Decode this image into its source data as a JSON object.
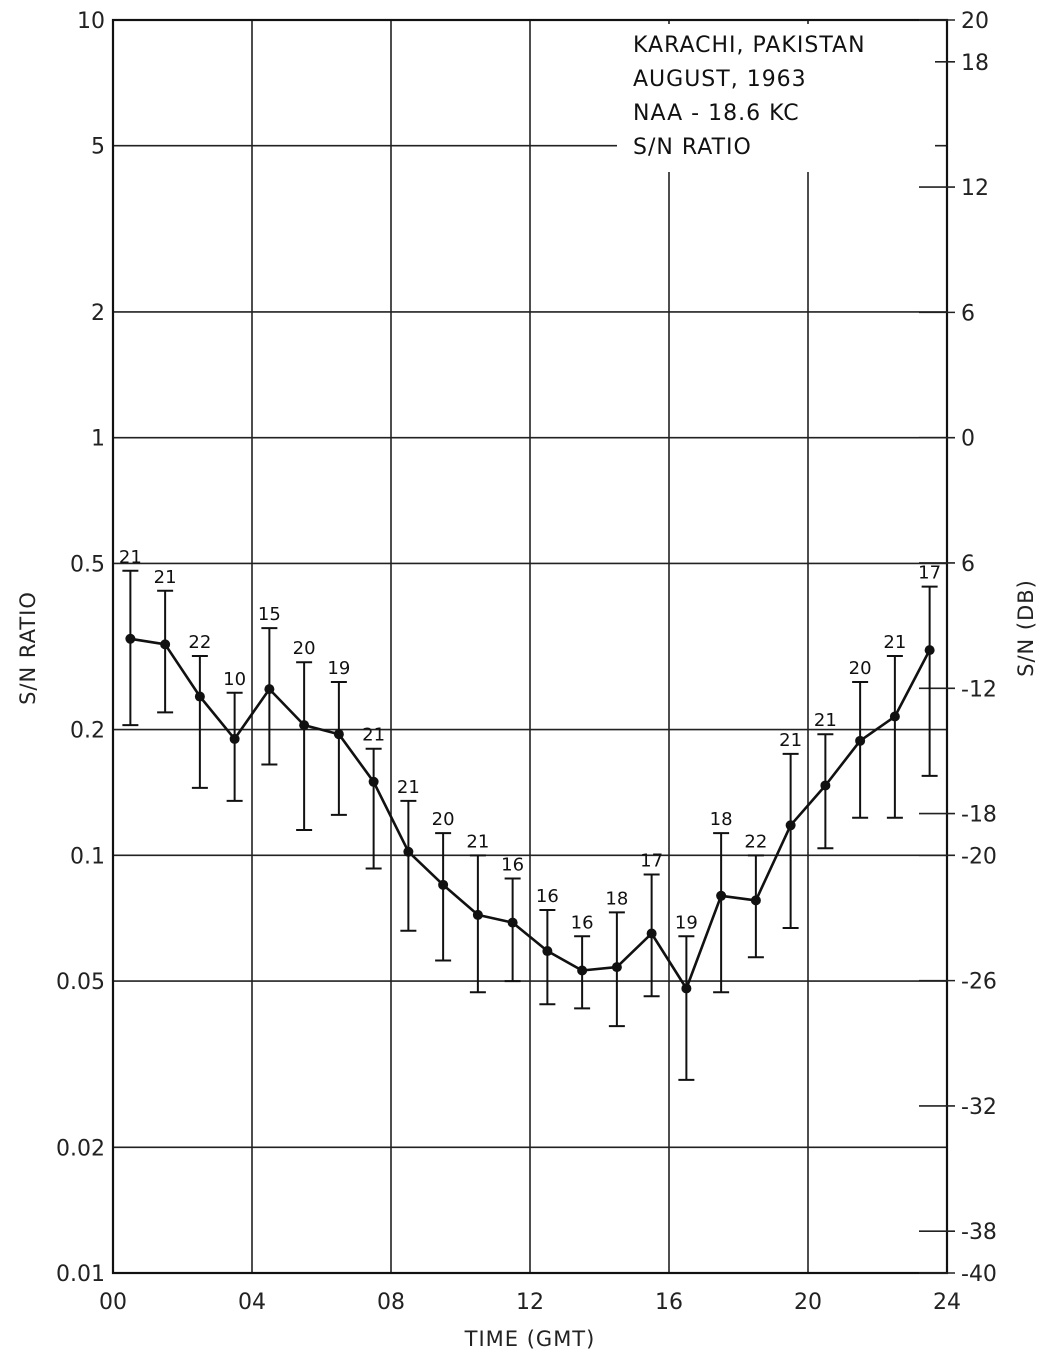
{
  "chart_data": {
    "type": "line",
    "title_lines": [
      "KARACHI, PAKISTAN",
      "AUGUST, 1963",
      "NAA - 18.6 KC",
      "S/N RATIO"
    ],
    "xlabel": "TIME (GMT)",
    "ylabel": "S/N RATIO",
    "ylabel_right": "S/N (DB)",
    "x_ticks": [
      "00",
      "04",
      "08",
      "12",
      "16",
      "20",
      "24"
    ],
    "xlim": [
      0,
      24
    ],
    "y_scale": "log",
    "ylim": [
      0.01,
      10
    ],
    "y_ticks": [
      {
        "value": 10,
        "label": "10"
      },
      {
        "value": 5,
        "label": "5"
      },
      {
        "value": 2,
        "label": "2"
      },
      {
        "value": 1,
        "label": "1"
      },
      {
        "value": 0.5,
        "label": "0.5"
      },
      {
        "value": 0.2,
        "label": "0.2"
      },
      {
        "value": 0.1,
        "label": "0.1"
      },
      {
        "value": 0.05,
        "label": "0.05"
      },
      {
        "value": 0.02,
        "label": "0.02"
      },
      {
        "value": 0.01,
        "label": "0.01"
      }
    ],
    "y_right_ticks": [
      {
        "db": 20,
        "label": "20"
      },
      {
        "db": 18,
        "label": "18"
      },
      {
        "db": 12,
        "label": "12"
      },
      {
        "db": 6,
        "label": "6"
      },
      {
        "db": 0,
        "label": "0"
      },
      {
        "db": -6,
        "label": "6"
      },
      {
        "db": -12,
        "label": "-12"
      },
      {
        "db": -18,
        "label": "-18"
      },
      {
        "db": -20,
        "label": "-20"
      },
      {
        "db": -26,
        "label": "-26"
      },
      {
        "db": -32,
        "label": "-32"
      },
      {
        "db": -38,
        "label": "-38"
      },
      {
        "db": -40,
        "label": "-40"
      }
    ],
    "grid": true,
    "series": [
      {
        "x": [
          0.5,
          1.5,
          2.5,
          3.5,
          4.5,
          5.5,
          6.5,
          7.5,
          8.5,
          9.5,
          10.5,
          11.5,
          12.5,
          13.5,
          14.5,
          15.5,
          16.5,
          17.5,
          18.5,
          19.5,
          20.5,
          21.5,
          22.5,
          23.5
        ],
        "y": [
          0.33,
          0.32,
          0.24,
          0.19,
          0.25,
          0.205,
          0.195,
          0.15,
          0.102,
          0.085,
          0.072,
          0.069,
          0.059,
          0.053,
          0.054,
          0.065,
          0.048,
          0.08,
          0.078,
          0.118,
          0.147,
          0.188,
          0.215,
          0.31
        ],
        "y_high": [
          0.48,
          0.43,
          0.3,
          0.245,
          0.35,
          0.29,
          0.26,
          0.18,
          0.135,
          0.113,
          0.1,
          0.088,
          0.074,
          0.064,
          0.073,
          0.09,
          0.064,
          0.113,
          0.1,
          0.175,
          0.195,
          0.26,
          0.3,
          0.44
        ],
        "y_low": [
          0.205,
          0.22,
          0.145,
          0.135,
          0.165,
          0.115,
          0.125,
          0.093,
          0.066,
          0.056,
          0.047,
          0.05,
          0.044,
          0.043,
          0.039,
          0.046,
          0.029,
          0.047,
          0.057,
          0.067,
          0.104,
          0.123,
          0.123,
          0.155
        ],
        "n": [
          "21",
          "21",
          "22",
          "10",
          "15",
          "20",
          "19",
          "21",
          "21",
          "20",
          "21",
          "16",
          "16",
          "16",
          "18",
          "17",
          "19",
          "18",
          "22",
          "21",
          "21",
          "20",
          "21",
          "17"
        ]
      }
    ]
  }
}
